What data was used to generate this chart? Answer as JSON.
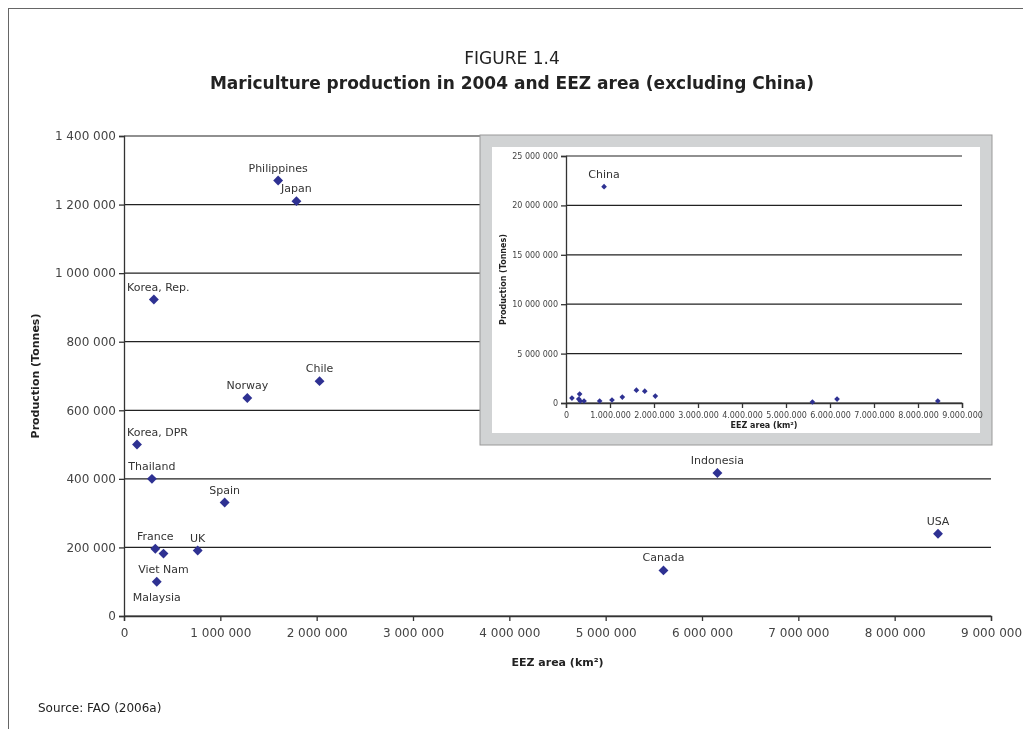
{
  "chart_data": [
    {
      "type": "scatter",
      "title": "FIGURE 1.4",
      "subtitle": "Mariculture production in 2004 and EEZ area (excluding China)",
      "xlabel": "EEZ area (km²)",
      "ylabel": "Production (Tonnes)",
      "x": [
        1600000,
        1790000,
        310000,
        1280000,
        2030000,
        135000,
        290000,
        1045000,
        325000,
        410000,
        765000,
        340000,
        6160000,
        8450000,
        5600000
      ],
      "series": [
        {
          "color": "#2e3192",
          "values": [
            1270000,
            1210000,
            923000,
            636000,
            685000,
            500000,
            400000,
            331000,
            196000,
            182000,
            191000,
            100000,
            417000,
            240000,
            133000
          ]
        }
      ],
      "marker": "diamond",
      "grid": "y",
      "xlim": [
        0,
        9000000
      ],
      "xticks": [
        0,
        {
          "value": 1000000,
          "label": "1 000 000"
        },
        {
          "value": 2000000,
          "label": "2 000 000"
        },
        {
          "value": 3000000,
          "label": "3 000 000"
        },
        {
          "value": 4000000,
          "label": "4 000 000"
        },
        {
          "value": 5000000,
          "label": "5 000 000"
        },
        {
          "value": 6000000,
          "label": "6 000 000"
        },
        {
          "value": 7000000,
          "label": "7 000 000"
        },
        {
          "value": 8000000,
          "label": "8 000 000"
        },
        {
          "value": 9000000,
          "label": "9 000 000"
        }
      ],
      "ylim": [
        0,
        1400000
      ],
      "yticks": [
        0,
        {
          "value": 200000,
          "label": "200 000"
        },
        {
          "value": 400000,
          "label": "400 000"
        },
        {
          "value": 600000,
          "label": "600 000"
        },
        {
          "value": 800000,
          "label": "800 000"
        },
        {
          "value": 1000000,
          "label": "1 000 000"
        },
        {
          "value": 1200000,
          "label": "1 200 000"
        },
        {
          "value": 1400000,
          "label": "1 400 000"
        }
      ],
      "annotations": [
        {
          "text": "Philippines",
          "x": 1600000,
          "y": 1270000
        },
        {
          "text": "Japan",
          "x": 1790000,
          "y": 1210000
        },
        {
          "text": "Korea, Rep.",
          "x": 310000,
          "y": 923000
        },
        {
          "text": "Norway",
          "x": 1280000,
          "y": 636000
        },
        {
          "text": "Chile",
          "x": 2030000,
          "y": 685000
        },
        {
          "text": "Korea, DPR",
          "x": 135000,
          "y": 500000
        },
        {
          "text": "Thailand",
          "x": 290000,
          "y": 400000
        },
        {
          "text": "Spain",
          "x": 1045000,
          "y": 331000
        },
        {
          "text": "France",
          "x": 325000,
          "y": 196000
        },
        {
          "text": "Viet Nam",
          "x": 410000,
          "y": 182000
        },
        {
          "text": "UK",
          "x": 765000,
          "y": 191000
        },
        {
          "text": "Malaysia",
          "x": 340000,
          "y": 100000
        },
        {
          "text": "Indonesia",
          "x": 6160000,
          "y": 417000
        },
        {
          "text": "USA",
          "x": 8450000,
          "y": 240000
        },
        {
          "text": "Canada",
          "x": 5600000,
          "y": 133000
        },
        "Source: FAO (2006a)"
      ]
    },
    {
      "type": "scatter",
      "xlabel": "EEZ area (km²)",
      "ylabel": "Production (Tonnes)",
      "x": [
        865000,
        1600000,
        1790000,
        310000,
        1280000,
        2030000,
        135000,
        290000,
        1045000,
        325000,
        410000,
        765000,
        6160000,
        8450000,
        5600000
      ],
      "series": [
        {
          "color": "#2e3192",
          "values": [
            21900000,
            1300000,
            1200000,
            900000,
            600000,
            700000,
            500000,
            400000,
            300000,
            200000,
            200000,
            200000,
            400000,
            200000,
            100000
          ]
        }
      ],
      "marker": "diamond",
      "grid": "y",
      "xlim": [
        0,
        9000000
      ],
      "xticks": [
        0,
        {
          "value": 1000000,
          "label": "1.000.000"
        },
        {
          "value": 2000000,
          "label": "2.000.000"
        },
        {
          "value": 3000000,
          "label": "3.000.000"
        },
        {
          "value": 4000000,
          "label": "4.000.000"
        },
        {
          "value": 5000000,
          "label": "5.000.000"
        },
        {
          "value": 6000000,
          "label": "6.000.000"
        },
        {
          "value": 7000000,
          "label": "7.000.000"
        },
        {
          "value": 8000000,
          "label": "8.000.000"
        },
        {
          "value": 9000000,
          "label": "9.000.000"
        }
      ],
      "ylim": [
        0,
        25000000
      ],
      "yticks": [
        0,
        {
          "value": 5000000,
          "label": "5 000 000"
        },
        {
          "value": 10000000,
          "label": "10 000 000"
        },
        {
          "value": 15000000,
          "label": "15 000 000"
        },
        {
          "value": 20000000,
          "label": "20 000 000"
        },
        {
          "value": 25000000,
          "label": "25 000 000"
        }
      ],
      "annotations": [
        {
          "text": "China",
          "x": 865000,
          "y": 21900000
        }
      ]
    }
  ]
}
